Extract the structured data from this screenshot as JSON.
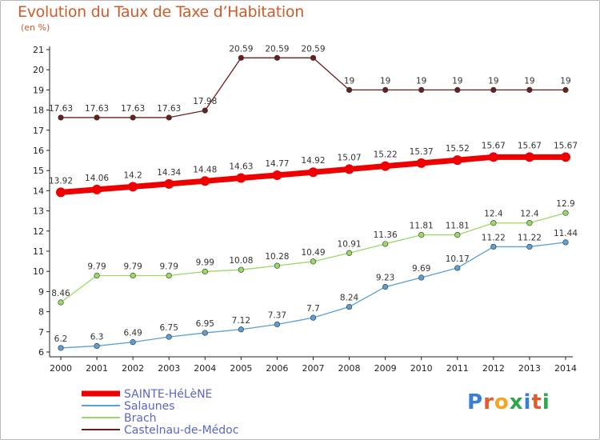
{
  "title": "Evolution du Taux de Taxe d’Habitation",
  "unit_label": "(en %)",
  "logo": {
    "text": "Proxiti",
    "letter_colors": [
      "#3a7fd5",
      "#e25b2a",
      "#f2a623",
      "#2fa64a",
      "#3a7fd5",
      "#e25b2a",
      "#2fa64a"
    ]
  },
  "chart_data": {
    "type": "line",
    "title": "Evolution du Taux de Taxe d’Habitation",
    "ylabel": "(en %)",
    "x": [
      "2000",
      "2001",
      "2002",
      "2003",
      "2004",
      "2005",
      "2006",
      "2007",
      "2008",
      "2009",
      "2010",
      "2011",
      "2012",
      "2013",
      "2014"
    ],
    "ylim": [
      6,
      21
    ],
    "yticks": [
      6,
      7,
      8,
      9,
      10,
      11,
      12,
      13,
      14,
      15,
      16,
      17,
      18,
      19,
      20,
      21
    ],
    "grid": false,
    "legend_position": "bottom-left",
    "series": [
      {
        "name": "Castelnau-de-Médoc",
        "color": "#6b1e1e",
        "values": [
          17.63,
          17.63,
          17.63,
          17.63,
          17.98,
          20.59,
          20.59,
          20.59,
          19,
          19,
          19,
          19,
          19,
          19,
          19
        ],
        "labels": [
          "17.63",
          "17.63",
          "17.63",
          "17.63",
          "17.98",
          "20.59",
          "20.59",
          "20.59",
          "19",
          "19",
          "19",
          "19",
          "19",
          "19",
          "19"
        ]
      },
      {
        "name": "SAINTE-HéLèNE",
        "color": "#ee0000",
        "values": [
          13.92,
          14.06,
          14.2,
          14.34,
          14.48,
          14.63,
          14.77,
          14.92,
          15.07,
          15.22,
          15.37,
          15.52,
          15.67,
          15.67,
          15.67
        ],
        "labels": [
          "13.92",
          "14.06",
          "14.2",
          "14.34",
          "14.48",
          "14.63",
          "14.77",
          "14.92",
          "15.07",
          "15.22",
          "15.37",
          "15.52",
          "15.67",
          "15.67",
          "15.67"
        ]
      },
      {
        "name": "Brach",
        "color": "#99d964",
        "values": [
          8.46,
          9.79,
          9.79,
          9.79,
          9.99,
          10.08,
          10.28,
          10.49,
          10.91,
          11.36,
          11.81,
          11.81,
          12.4,
          12.4,
          12.9
        ],
        "labels": [
          "8.46",
          "9.79",
          "9.79",
          "9.79",
          "9.99",
          "10.08",
          "10.28",
          "10.49",
          "10.91",
          "11.36",
          "11.81",
          "11.81",
          "12.4",
          "12.4",
          "12.9"
        ]
      },
      {
        "name": "Salaunes",
        "color": "#5b9fd4",
        "values": [
          6.2,
          6.3,
          6.49,
          6.75,
          6.95,
          7.12,
          7.37,
          7.7,
          8.24,
          9.23,
          9.69,
          10.17,
          11.22,
          11.22,
          11.44
        ],
        "labels": [
          "6.2",
          "6.3",
          "6.49",
          "6.75",
          "6.95",
          "7.12",
          "7.37",
          "7.7",
          "8.24",
          "9.23",
          "9.69",
          "10.17",
          "11.22",
          "11.22",
          "11.44"
        ]
      }
    ],
    "legend": [
      "SAINTE-HéLèNE",
      "Salaunes",
      "Brach",
      "Castelnau-de-Médoc"
    ]
  }
}
